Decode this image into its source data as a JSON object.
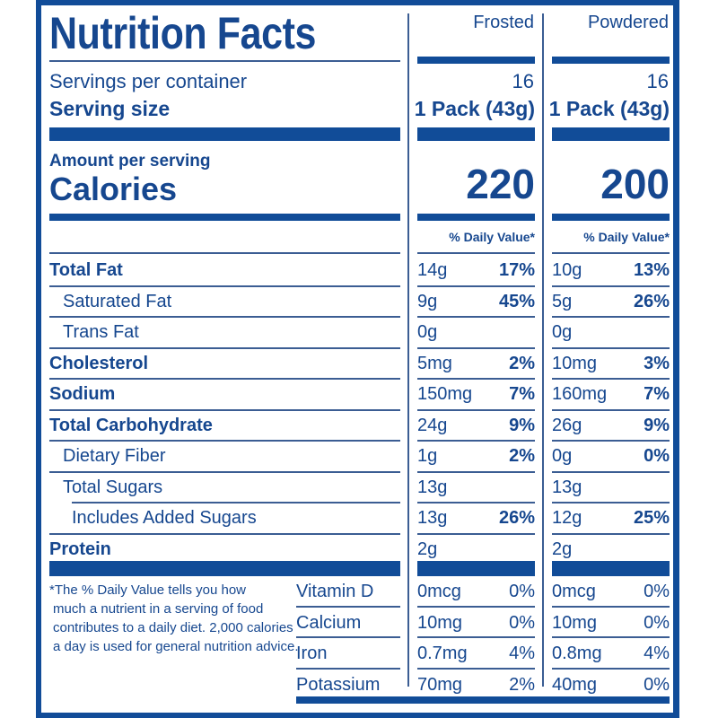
{
  "title": "Nutrition Facts",
  "columns": [
    "Frosted",
    "Powdered"
  ],
  "servings_per_container_label": "Servings per container",
  "serving_size_label": "Serving size",
  "servings": [
    "16",
    "16"
  ],
  "serving_size": [
    "1 Pack (43g)",
    "1 Pack (43g)"
  ],
  "amount_per_serving_label": "Amount per serving",
  "calories_label": "Calories",
  "calories": [
    "220",
    "200"
  ],
  "daily_value_header": "% Daily Value*",
  "nutrients": [
    {
      "name": "Total Fat",
      "bold": true,
      "indent": 0,
      "frosted": {
        "amount": "14g",
        "dv": "17%"
      },
      "powdered": {
        "amount": "10g",
        "dv": "13%"
      }
    },
    {
      "name": "Saturated Fat",
      "bold": false,
      "indent": 1,
      "frosted": {
        "amount": "9g",
        "dv": "45%"
      },
      "powdered": {
        "amount": "5g",
        "dv": "26%"
      }
    },
    {
      "name": "Trans Fat",
      "bold": false,
      "indent": 1,
      "frosted": {
        "amount": "0g",
        "dv": ""
      },
      "powdered": {
        "amount": "0g",
        "dv": ""
      }
    },
    {
      "name": "Cholesterol",
      "bold": true,
      "indent": 0,
      "frosted": {
        "amount": "5mg",
        "dv": "2%"
      },
      "powdered": {
        "amount": "10mg",
        "dv": "3%"
      }
    },
    {
      "name": "Sodium",
      "bold": true,
      "indent": 0,
      "frosted": {
        "amount": "150mg",
        "dv": "7%"
      },
      "powdered": {
        "amount": "160mg",
        "dv": "7%"
      }
    },
    {
      "name": "Total Carbohydrate",
      "bold": true,
      "indent": 0,
      "frosted": {
        "amount": "24g",
        "dv": "9%"
      },
      "powdered": {
        "amount": "26g",
        "dv": "9%"
      }
    },
    {
      "name": "Dietary Fiber",
      "bold": false,
      "indent": 1,
      "frosted": {
        "amount": "1g",
        "dv": "2%"
      },
      "powdered": {
        "amount": "0g",
        "dv": "0%"
      }
    },
    {
      "name": "Total Sugars",
      "bold": false,
      "indent": 1,
      "frosted": {
        "amount": "13g",
        "dv": ""
      },
      "powdered": {
        "amount": "13g",
        "dv": ""
      }
    },
    {
      "name": "Includes Added Sugars",
      "bold": false,
      "indent": 2,
      "frosted": {
        "amount": "13g",
        "dv": "26%"
      },
      "powdered": {
        "amount": "12g",
        "dv": "25%"
      }
    },
    {
      "name": "Protein",
      "bold": true,
      "indent": 0,
      "frosted": {
        "amount": "2g",
        "dv": ""
      },
      "powdered": {
        "amount": "2g",
        "dv": ""
      }
    }
  ],
  "vitamins": [
    {
      "name": "Vitamin D",
      "frosted": {
        "amount": "0mcg",
        "dv": "0%"
      },
      "powdered": {
        "amount": "0mcg",
        "dv": "0%"
      }
    },
    {
      "name": "Calcium",
      "frosted": {
        "amount": "10mg",
        "dv": "0%"
      },
      "powdered": {
        "amount": "10mg",
        "dv": "0%"
      }
    },
    {
      "name": "Iron",
      "frosted": {
        "amount": "0.7mg",
        "dv": "4%"
      },
      "powdered": {
        "amount": "0.8mg",
        "dv": "4%"
      }
    },
    {
      "name": "Potassium",
      "frosted": {
        "amount": "70mg",
        "dv": "2%"
      },
      "powdered": {
        "amount": "40mg",
        "dv": "0%"
      }
    }
  ],
  "footnote": [
    "*The % Daily Value tells you how",
    "much a nutrient in a serving of food",
    "contributes to a daily diet. 2,000 calories",
    "a day is used for general nutrition advice."
  ],
  "colors": {
    "primary": "#114c98",
    "rule": "#3b5d93",
    "background": "#ffffff"
  }
}
